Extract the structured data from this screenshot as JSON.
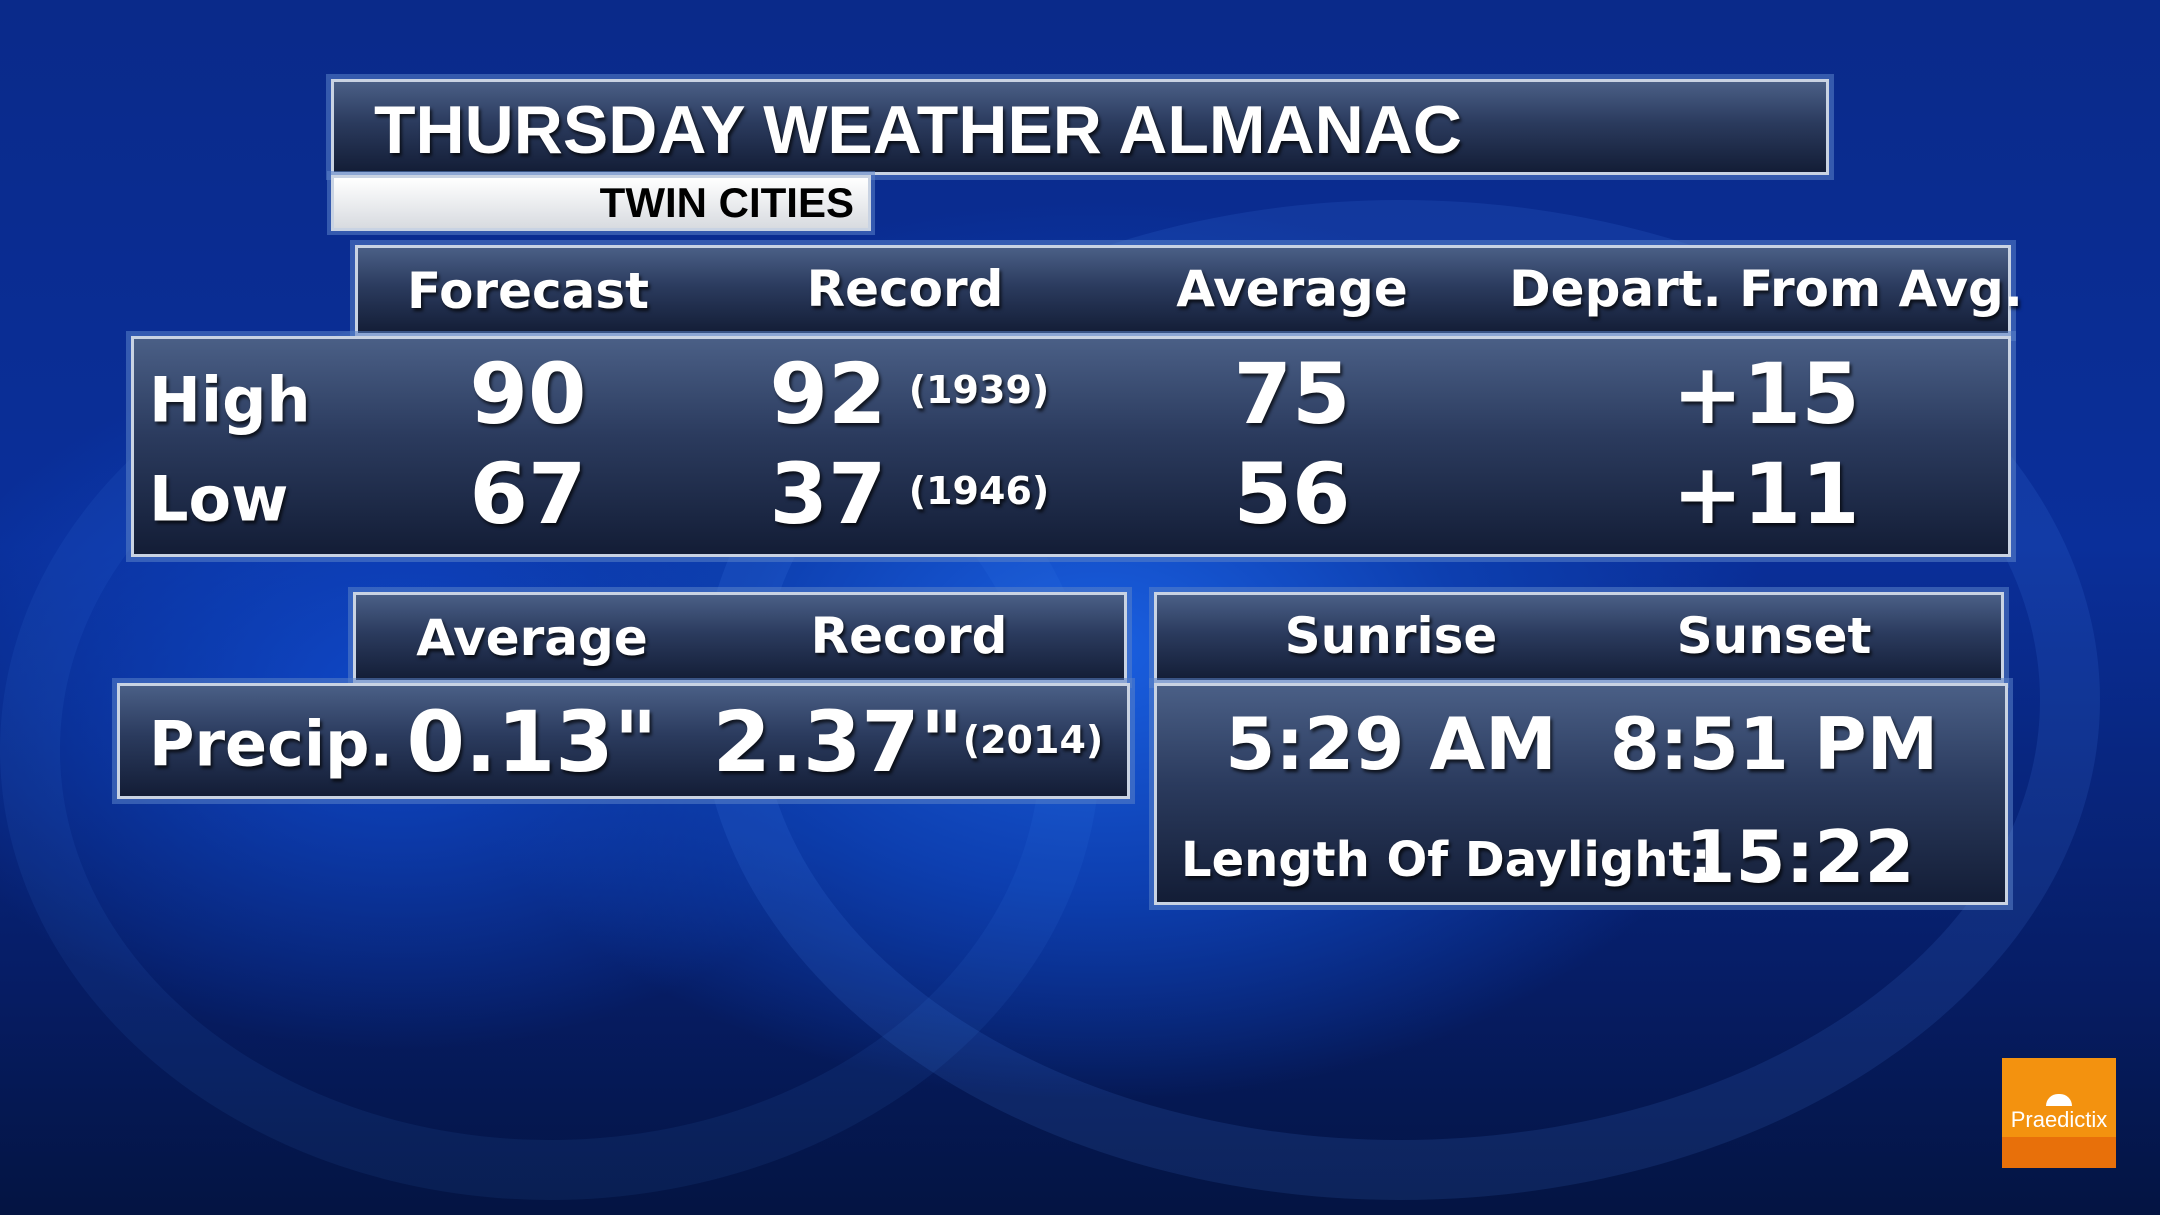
{
  "title": "THURSDAY WEATHER ALMANAC",
  "location": "TWIN CITIES",
  "temps": {
    "columns": [
      "Forecast",
      "Record",
      "Average",
      "Depart. From Avg."
    ],
    "rows": [
      {
        "label": "High",
        "forecast": "90",
        "record": "92",
        "record_year": "(1939)",
        "average": "75",
        "departure": "+15"
      },
      {
        "label": "Low",
        "forecast": "67",
        "record": "37",
        "record_year": "(1946)",
        "average": "56",
        "departure": "+11"
      }
    ]
  },
  "precip": {
    "columns": [
      "Average",
      "Record"
    ],
    "label": "Precip.",
    "average": "0.13\"",
    "record": "2.37\"",
    "record_year": "(2014)"
  },
  "sun": {
    "columns": [
      "Sunrise",
      "Sunset"
    ],
    "sunrise": "5:29 AM",
    "sunset": "8:51 PM",
    "daylight_label": "Length Of Daylight:",
    "daylight": "15:22"
  },
  "logo": {
    "text": "Praedictix",
    "color": "#f0880c"
  }
}
